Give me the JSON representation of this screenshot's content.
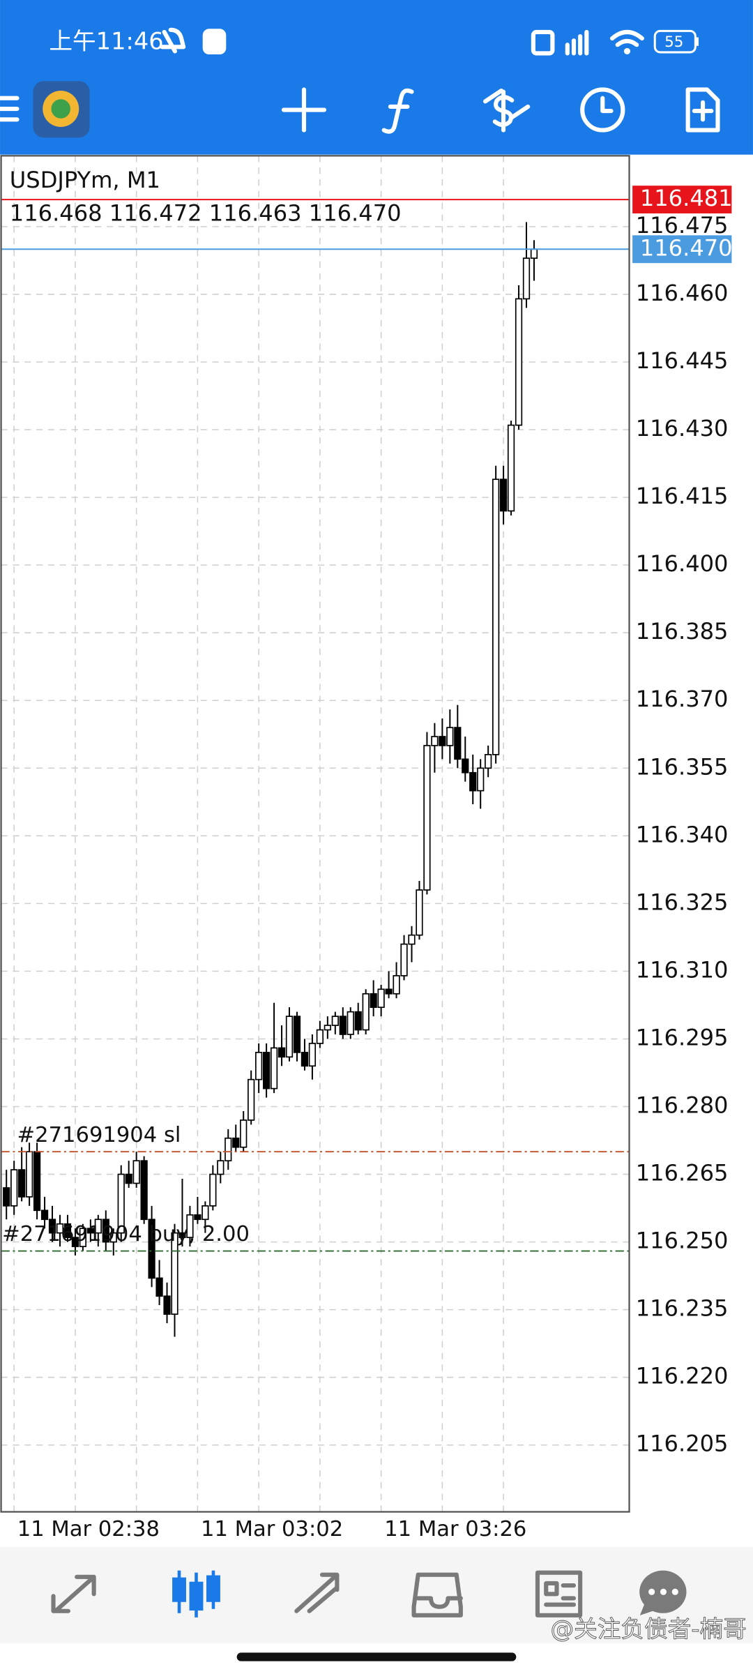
{
  "status_bar": {
    "time": "上午11:46",
    "battery": "55"
  },
  "chart_data": {
    "type": "candlestick",
    "title": "USDJPYm, M1",
    "subtitle": "116.468 116.472 116.463 116.470",
    "categories": [
      null,
      "11 Mar 02:38",
      null,
      null,
      null,
      null,
      null,
      null,
      null,
      null,
      null,
      null,
      null,
      null,
      null,
      null,
      null,
      null,
      null,
      null,
      null,
      null,
      null,
      null,
      null,
      "11 Mar 03:02",
      null,
      null,
      null,
      null,
      null,
      null,
      null,
      null,
      null,
      null,
      null,
      null,
      null,
      null,
      null,
      null,
      null,
      null,
      null,
      null,
      null,
      null,
      null,
      "11 Mar 03:26",
      null,
      null,
      null,
      null,
      null,
      null,
      null,
      null,
      null,
      null,
      null,
      null,
      null,
      null,
      null,
      null,
      null,
      null,
      null,
      null
    ],
    "open": [
      116.262,
      116.258,
      116.266,
      116.26,
      116.27,
      116.257,
      116.255,
      116.252,
      116.254,
      116.251,
      116.249,
      116.253,
      116.252,
      116.255,
      116.25,
      116.252,
      116.265,
      116.263,
      116.268,
      116.255,
      116.242,
      116.238,
      116.234,
      116.252,
      116.251,
      116.256,
      116.255,
      116.258,
      116.265,
      116.268,
      116.273,
      116.271,
      116.277,
      116.286,
      116.292,
      116.284,
      116.293,
      116.291,
      116.3,
      116.292,
      116.289,
      116.294,
      116.297,
      116.298,
      116.3,
      116.296,
      116.301,
      116.297,
      116.305,
      116.302,
      116.306,
      116.305,
      116.309,
      116.316,
      116.318,
      116.328,
      116.36,
      116.362,
      116.36,
      116.364,
      116.357,
      116.354,
      116.35,
      116.355,
      116.358,
      116.419,
      116.412,
      116.431,
      116.459,
      116.468
    ],
    "high": [
      116.266,
      116.268,
      116.271,
      116.272,
      116.272,
      116.26,
      116.258,
      116.256,
      116.256,
      116.253,
      116.254,
      116.255,
      116.256,
      116.257,
      116.253,
      116.267,
      116.268,
      116.27,
      116.269,
      116.258,
      116.246,
      116.241,
      116.254,
      116.264,
      116.258,
      116.26,
      116.259,
      116.267,
      116.27,
      116.275,
      116.276,
      116.279,
      116.288,
      116.294,
      116.294,
      116.303,
      116.298,
      116.302,
      116.301,
      116.295,
      116.296,
      116.299,
      116.3,
      116.301,
      116.302,
      116.302,
      116.303,
      116.306,
      116.308,
      116.307,
      116.31,
      116.312,
      116.318,
      116.32,
      116.33,
      116.363,
      116.365,
      116.366,
      116.368,
      116.369,
      116.362,
      116.358,
      116.357,
      116.36,
      116.422,
      116.422,
      116.432,
      116.462,
      116.476,
      116.472
    ],
    "low": [
      116.255,
      116.256,
      116.259,
      116.258,
      116.255,
      116.253,
      116.25,
      116.249,
      116.25,
      116.247,
      116.248,
      116.25,
      116.249,
      116.248,
      116.247,
      116.25,
      116.262,
      116.262,
      116.254,
      116.24,
      116.236,
      116.232,
      116.229,
      116.249,
      116.249,
      116.254,
      116.252,
      116.257,
      116.263,
      116.266,
      116.27,
      116.27,
      116.276,
      116.283,
      116.282,
      116.283,
      116.289,
      116.29,
      116.29,
      116.288,
      116.286,
      116.293,
      116.295,
      116.296,
      116.295,
      116.295,
      116.296,
      116.296,
      116.3,
      116.3,
      116.304,
      116.304,
      116.308,
      116.312,
      116.317,
      116.327,
      116.354,
      116.357,
      116.356,
      116.355,
      116.352,
      116.347,
      116.346,
      116.353,
      116.356,
      116.409,
      116.411,
      116.43,
      116.457,
      116.463
    ],
    "close": [
      116.258,
      116.266,
      116.26,
      116.27,
      116.257,
      116.255,
      116.252,
      116.254,
      116.251,
      116.249,
      116.253,
      116.252,
      116.255,
      116.25,
      116.252,
      116.265,
      116.263,
      116.268,
      116.255,
      116.242,
      116.238,
      116.234,
      116.252,
      116.251,
      116.256,
      116.255,
      116.258,
      116.265,
      116.268,
      116.273,
      116.271,
      116.277,
      116.286,
      116.292,
      116.284,
      116.293,
      116.291,
      116.3,
      116.292,
      116.289,
      116.294,
      116.297,
      116.298,
      116.3,
      116.296,
      116.301,
      116.297,
      116.305,
      116.302,
      116.306,
      116.305,
      116.309,
      116.316,
      116.318,
      116.328,
      116.36,
      116.362,
      116.36,
      116.364,
      116.357,
      116.354,
      116.35,
      116.355,
      116.358,
      116.419,
      116.412,
      116.431,
      116.459,
      116.468,
      116.47
    ],
    "up_color": "#ffffff",
    "down_color": "#000000",
    "ylim": [
      116.1902,
      116.4907
    ],
    "yticks": [
      {
        "value": 116.205,
        "label": "116.205"
      },
      {
        "value": 116.22,
        "label": "116.220"
      },
      {
        "value": 116.235,
        "label": "116.235"
      },
      {
        "value": 116.25,
        "label": "116.250"
      },
      {
        "value": 116.265,
        "label": "116.265"
      },
      {
        "value": 116.28,
        "label": "116.280"
      },
      {
        "value": 116.295,
        "label": "116.295"
      },
      {
        "value": 116.31,
        "label": "116.310"
      },
      {
        "value": 116.325,
        "label": "116.325"
      },
      {
        "value": 116.34,
        "label": "116.340"
      },
      {
        "value": 116.355,
        "label": "116.355"
      },
      {
        "value": 116.37,
        "label": "116.370"
      },
      {
        "value": 116.385,
        "label": "116.385"
      },
      {
        "value": 116.4,
        "label": "116.400"
      },
      {
        "value": 116.415,
        "label": "116.415"
      },
      {
        "value": 116.43,
        "label": "116.430"
      },
      {
        "value": 116.445,
        "label": "116.445"
      },
      {
        "value": 116.46,
        "label": "116.460"
      },
      {
        "value": 116.475,
        "label": "116.475"
      }
    ],
    "grid": true,
    "price_lines": [
      {
        "name": "#271691904 sl",
        "value": 116.27,
        "color": "#c0502a"
      },
      {
        "name": "#271691904 buy, 2.00",
        "value": 116.248,
        "color": "#2e6b2e"
      }
    ],
    "ask": {
      "value": 116.481,
      "label": "116.481",
      "color": "#e8141b"
    },
    "bid": {
      "value": 116.47,
      "label": "116.470",
      "color": "#4a9be0"
    }
  },
  "watermark": "@关注负债者-楠哥"
}
